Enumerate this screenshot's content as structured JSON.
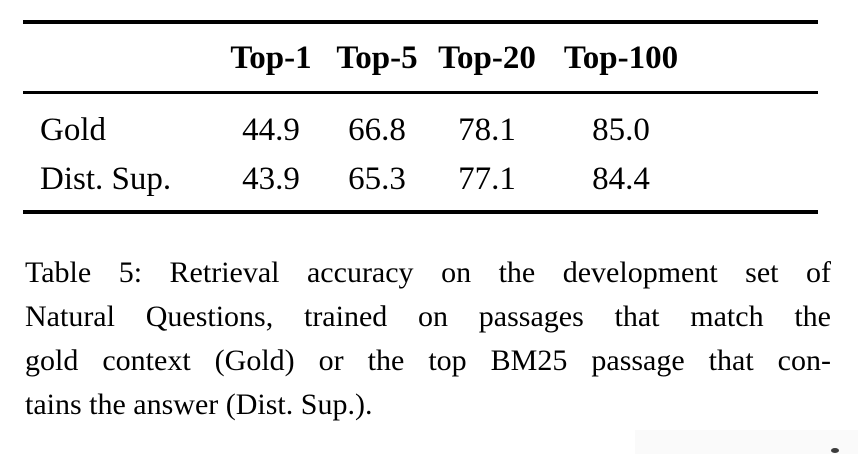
{
  "page": {
    "background": "#ffffff",
    "text_color": "#000000"
  },
  "table": {
    "column_headers": [
      "Top-1",
      "Top-5",
      "Top-20",
      "Top-100"
    ],
    "rows": [
      {
        "label": "Gold",
        "values": [
          "44.9",
          "66.8",
          "78.1",
          "85.0"
        ]
      },
      {
        "label": "Dist. Sup.",
        "values": [
          "43.9",
          "65.3",
          "77.1",
          "84.4"
        ]
      }
    ]
  },
  "chart_data": {
    "type": "table",
    "categories": [
      "Top-1",
      "Top-5",
      "Top-20",
      "Top-100"
    ],
    "series": [
      {
        "name": "Gold",
        "values": [
          44.9,
          66.8,
          78.1,
          85.0
        ]
      },
      {
        "name": "Dist. Sup.",
        "values": [
          43.9,
          65.3,
          77.1,
          84.4
        ]
      }
    ],
    "title": "Table 5: Retrieval accuracy on the development set of Natural Questions"
  },
  "caption": {
    "label": "Table 5:",
    "full_text": "Table 5: Retrieval accuracy on the development set of Natural Questions, trained on passages that match the gold context (Gold) or the top BM25 passage that contains the answer (Dist. Sup.).",
    "lines": [
      "Table 5: Retrieval accuracy on the development set of",
      "Natural Questions, trained on passages that match the",
      "gold context (Gold) or the top BM25 passage that con-",
      "tains the answer (Dist. Sup.)."
    ]
  },
  "artifacts": {
    "highlight_box_color": "#fafafa",
    "speck_color": "#3c3c3c"
  }
}
